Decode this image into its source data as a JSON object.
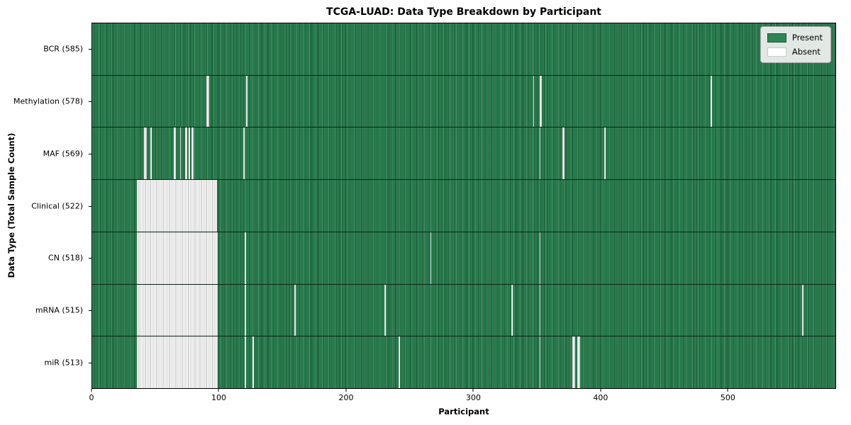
{
  "chart_data": {
    "type": "heatmap",
    "title": "TCGA-LUAD: Data Type Breakdown by Participant",
    "xlabel": "Participant",
    "ylabel": "Data Type (Total Sample Count)",
    "total_participants": 585,
    "x_ticks": [
      0,
      100,
      200,
      300,
      400,
      500
    ],
    "legend": [
      {
        "label": "Present",
        "color": "#2e8656"
      },
      {
        "label": "Absent",
        "color": "#ffffff"
      }
    ],
    "colors": {
      "present_fill": "#2e8656",
      "present_edge": "#17502f",
      "absent_fill": "#ffffff",
      "absent_edge": "#ababab",
      "row_divider": "#0c2416",
      "plot_border": "#000000",
      "legend_bg": "#f2f2f0",
      "legend_border": "#a6a6a6"
    },
    "rows": [
      {
        "label": "BCR (585)",
        "data_type": "BCR",
        "sample_count": 585,
        "absent_gaps": []
      },
      {
        "label": "Methylation (578)",
        "data_type": "Methylation",
        "sample_count": 578,
        "absent_gaps": [
          [
            90,
            2
          ],
          [
            121,
            1
          ],
          [
            347,
            1
          ],
          [
            352,
            2
          ],
          [
            487,
            1
          ]
        ]
      },
      {
        "label": "MAF (569)",
        "data_type": "MAF",
        "sample_count": 569,
        "absent_gaps": [
          [
            41,
            2
          ],
          [
            46,
            1
          ],
          [
            64,
            2
          ],
          [
            69,
            1
          ],
          [
            73,
            2
          ],
          [
            76,
            1
          ],
          [
            78,
            2
          ],
          [
            119,
            1
          ],
          [
            352,
            1
          ],
          [
            370,
            2
          ],
          [
            403,
            1
          ]
        ]
      },
      {
        "label": "Clinical (522)",
        "data_type": "Clinical",
        "sample_count": 522,
        "absent_gaps": [
          [
            35,
            63
          ]
        ]
      },
      {
        "label": "CN (518)",
        "data_type": "CN",
        "sample_count": 518,
        "absent_gaps": [
          [
            35,
            64
          ],
          [
            120,
            1
          ],
          [
            266,
            1
          ],
          [
            352,
            1
          ]
        ]
      },
      {
        "label": "mRNA (515)",
        "data_type": "mRNA",
        "sample_count": 515,
        "absent_gaps": [
          [
            35,
            64
          ],
          [
            120,
            1
          ],
          [
            159,
            1
          ],
          [
            230,
            1
          ],
          [
            330,
            1
          ],
          [
            352,
            1
          ],
          [
            559,
            1
          ]
        ]
      },
      {
        "label": "miR (513)",
        "data_type": "miR",
        "sample_count": 513,
        "absent_gaps": [
          [
            35,
            64
          ],
          [
            120,
            1
          ],
          [
            126,
            1
          ],
          [
            241,
            1
          ],
          [
            352,
            1
          ],
          [
            378,
            2
          ],
          [
            382,
            2
          ]
        ]
      }
    ]
  }
}
